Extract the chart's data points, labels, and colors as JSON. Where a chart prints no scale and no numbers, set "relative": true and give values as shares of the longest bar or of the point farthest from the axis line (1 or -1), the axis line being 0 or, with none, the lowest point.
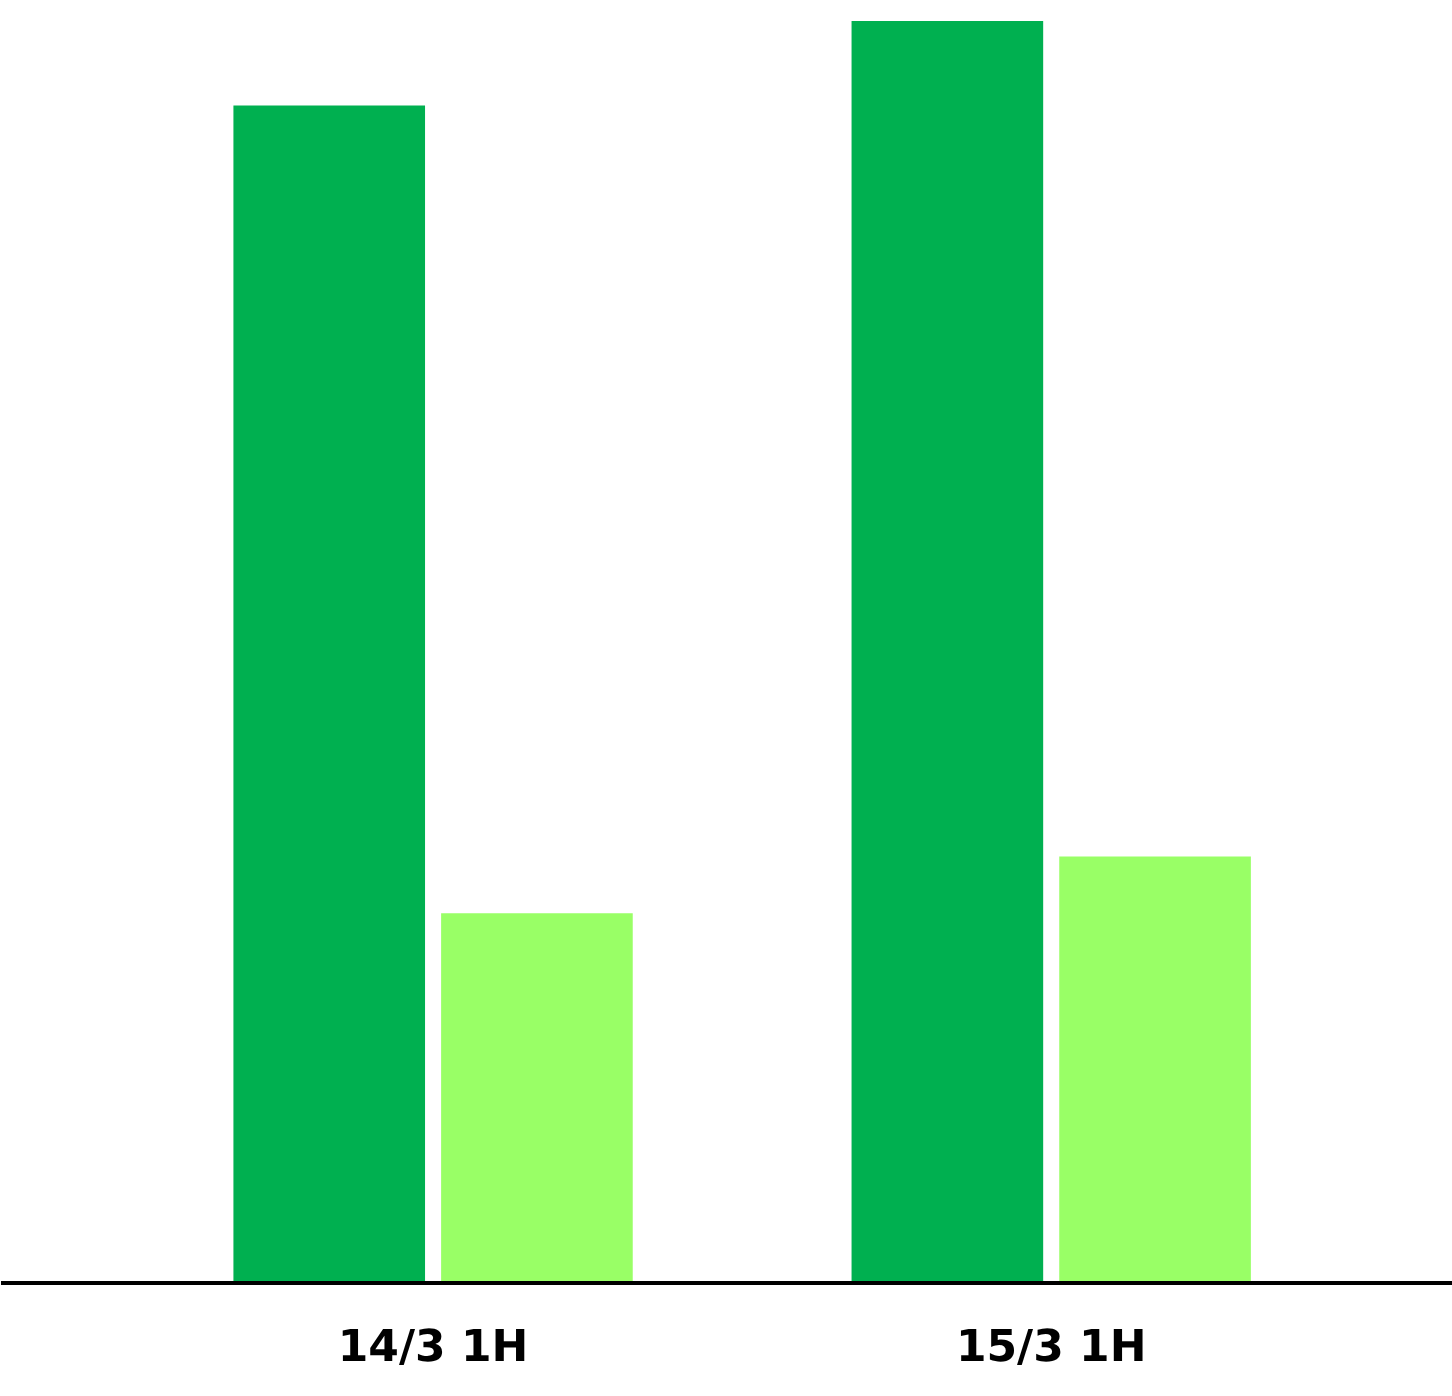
{
  "chart_data": {
    "type": "bar",
    "relative": true,
    "categories": [
      "14/3 1H",
      "15/3 1H"
    ],
    "series": [
      {
        "color": "#00b050",
        "values": [
          0.933,
          1
        ]
      },
      {
        "color": "#99ff66",
        "values": [
          0.293,
          0.338
        ]
      }
    ]
  }
}
